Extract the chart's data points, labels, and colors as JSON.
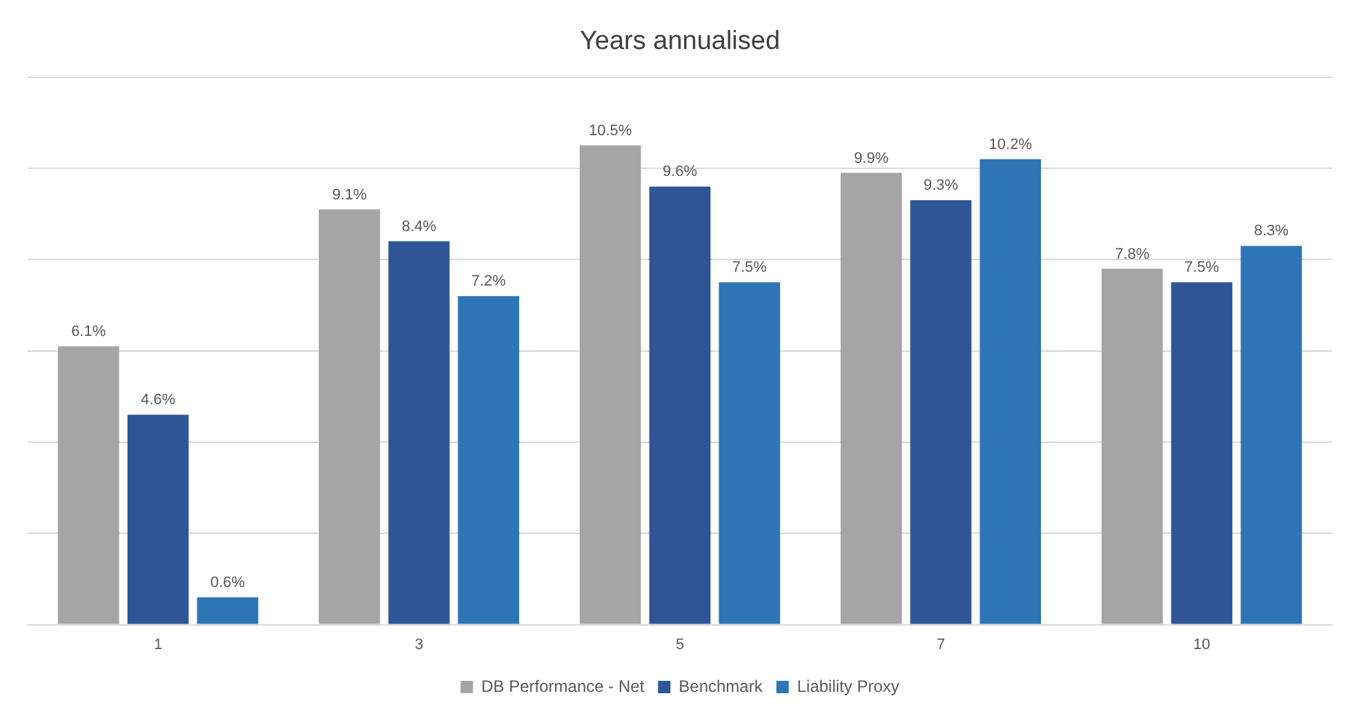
{
  "chart_data": {
    "type": "bar",
    "title": "Years annualised",
    "categories": [
      "1",
      "3",
      "5",
      "7",
      "10"
    ],
    "series": [
      {
        "name": "DB Performance - Net",
        "color": "#a5a5a5",
        "values": [
          6.1,
          9.1,
          10.5,
          9.9,
          7.8
        ],
        "value_labels": [
          "6.1%",
          "9.1%",
          "10.5%",
          "9.9%",
          "7.8%"
        ]
      },
      {
        "name": "Benchmark",
        "color": "#2f5597",
        "values": [
          4.6,
          8.4,
          9.6,
          9.3,
          7.5
        ],
        "value_labels": [
          "4.6%",
          "8.4%",
          "9.6%",
          "9.3%",
          "7.5%"
        ]
      },
      {
        "name": "Liability Proxy",
        "color": "#2e75b6",
        "values": [
          0.6,
          7.2,
          7.5,
          10.2,
          8.3
        ],
        "value_labels": [
          "0.6%",
          "7.2%",
          "7.5%",
          "10.2%",
          "8.3%"
        ]
      }
    ],
    "ylim": [
      0,
      12
    ],
    "yticks": [
      {
        "value": 0,
        "label": null
      },
      {
        "value": 2,
        "label": null
      },
      {
        "value": 4,
        "label": null
      },
      {
        "value": 6,
        "label": null
      },
      {
        "value": 8,
        "label": null
      },
      {
        "value": 10,
        "label": null
      },
      {
        "value": 12,
        "label": null
      }
    ],
    "grid": "y",
    "legend": "bottom",
    "tick_labels": "x"
  }
}
